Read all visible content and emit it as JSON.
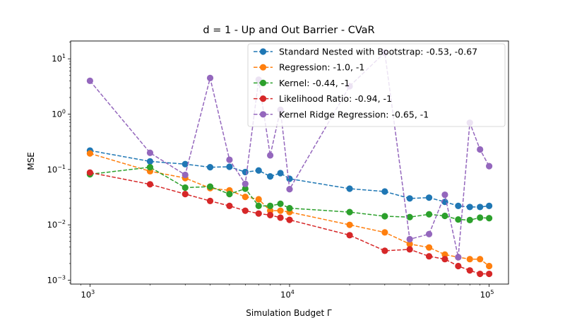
{
  "chart_data": {
    "type": "line",
    "title": "d = 1 - Up and Out Barrier - CVaR",
    "xlabel": "Simulation Budget Γ",
    "ylabel": "MSE",
    "xscale": "log",
    "yscale": "log",
    "xlim": [
      800,
      125000
    ],
    "ylim": [
      0.00085,
      21
    ],
    "x_ticks": [
      {
        "value": 1000,
        "base": "10",
        "exp": "3"
      },
      {
        "value": 10000,
        "base": "10",
        "exp": "4"
      },
      {
        "value": 100000,
        "base": "10",
        "exp": "5"
      }
    ],
    "y_ticks": [
      {
        "value": 0.001,
        "base": "10",
        "exp": "−3"
      },
      {
        "value": 0.01,
        "base": "10",
        "exp": "−2"
      },
      {
        "value": 0.1,
        "base": "10",
        "exp": "−1"
      },
      {
        "value": 1,
        "base": "10",
        "exp": "0"
      },
      {
        "value": 10,
        "base": "10",
        "exp": "1"
      }
    ],
    "grid": false,
    "legend_position": "top-right",
    "x": [
      1000,
      2000,
      3000,
      4000,
      5000,
      6000,
      7000,
      8000,
      9000,
      10000,
      20000,
      30000,
      40000,
      50000,
      60000,
      70000,
      80000,
      90000,
      100000
    ],
    "series": [
      {
        "name": "Standard Nested with Bootstrap: -0.53, -0.67",
        "color": "#1f77b4",
        "values": [
          0.22,
          0.14,
          0.125,
          0.11,
          0.112,
          0.09,
          0.096,
          0.075,
          0.086,
          0.068,
          0.045,
          0.04,
          0.03,
          0.031,
          0.026,
          0.022,
          0.021,
          0.021,
          0.022
        ]
      },
      {
        "name": "Regression: -1.0, -1",
        "color": "#ff7f0e",
        "values": [
          0.195,
          0.093,
          0.07,
          0.046,
          0.042,
          0.032,
          0.029,
          0.018,
          0.018,
          0.017,
          0.01,
          0.0073,
          0.0045,
          0.0039,
          0.0029,
          0.0026,
          0.0024,
          0.0024,
          0.0018
        ]
      },
      {
        "name": "Kernel: -0.44, -1",
        "color": "#2ca02c",
        "values": [
          0.082,
          0.11,
          0.047,
          0.049,
          0.036,
          0.045,
          0.022,
          0.022,
          0.024,
          0.02,
          0.017,
          0.0143,
          0.0138,
          0.0155,
          0.0145,
          0.0125,
          0.0122,
          0.0135,
          0.0132
        ]
      },
      {
        "name": "Likelihood Ratio: -0.94, -1",
        "color": "#d62728",
        "values": [
          0.088,
          0.054,
          0.036,
          0.027,
          0.022,
          0.018,
          0.016,
          0.015,
          0.0135,
          0.0123,
          0.0065,
          0.0034,
          0.0036,
          0.0027,
          0.0024,
          0.0018,
          0.0015,
          0.0013,
          0.0013
        ]
      },
      {
        "name": "Kernel Ridge Regression: -0.65, -1",
        "color": "#9467bd",
        "values": [
          4.0,
          0.2,
          0.08,
          4.5,
          0.15,
          0.055,
          4.2,
          0.18,
          1.2,
          0.044,
          3.2,
          13.0,
          0.0055,
          0.0068,
          0.035,
          0.0026,
          0.7,
          0.23,
          0.115
        ]
      }
    ]
  }
}
